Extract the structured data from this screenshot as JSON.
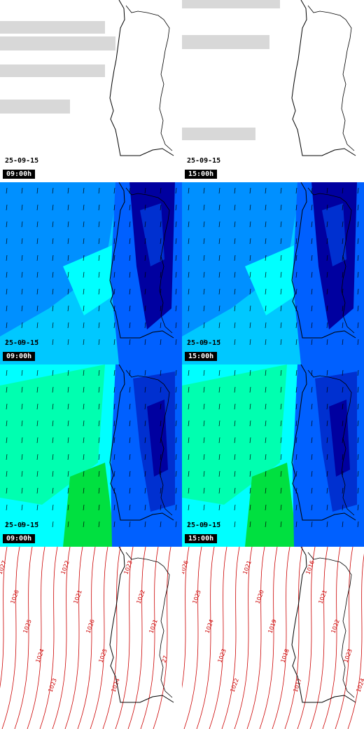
{
  "panels": [
    {
      "row": 0,
      "col": 0,
      "type": "cloud",
      "date": "25-09-15",
      "time": "09:00h"
    },
    {
      "row": 0,
      "col": 1,
      "type": "cloud",
      "date": "25-09-15",
      "time": "15:00h"
    },
    {
      "row": 1,
      "col": 0,
      "type": "wind_low",
      "date": "25-09-15",
      "time": "09:00h"
    },
    {
      "row": 1,
      "col": 1,
      "type": "wind_low",
      "date": "25-09-15",
      "time": "15:00h"
    },
    {
      "row": 2,
      "col": 0,
      "type": "wind_high",
      "date": "25-09-15",
      "time": "09:00h"
    },
    {
      "row": 2,
      "col": 1,
      "type": "wind_high",
      "date": "25-09-15",
      "time": "15:00h"
    },
    {
      "row": 3,
      "col": 0,
      "type": "pressure",
      "isobar_labels": [
        "1027",
        "1026",
        "1025",
        "1024",
        "1023",
        "1022",
        "1021",
        "1026",
        "1025",
        "1024",
        "1023",
        "1022",
        "1021",
        "27"
      ]
    },
    {
      "row": 3,
      "col": 1,
      "type": "pressure",
      "isobar_labels": [
        "1026",
        "1025",
        "1024",
        "1023",
        "1022",
        "1021",
        "1020",
        "1019",
        "1018",
        "1017",
        "1016",
        "1021",
        "1022",
        "1023",
        "1024"
      ]
    }
  ],
  "colors": {
    "cloud_gray": "#b8b8b8",
    "coastline": "#000000",
    "wind_arrow": "#000000",
    "isobar": "#cc0000",
    "wind_scale": [
      "#0000a0",
      "#0030d0",
      "#0060ff",
      "#0090ff",
      "#00c8ff",
      "#00ffff",
      "#00ffb0",
      "#00e040",
      "#80ff00",
      "#c8ff00"
    ]
  }
}
